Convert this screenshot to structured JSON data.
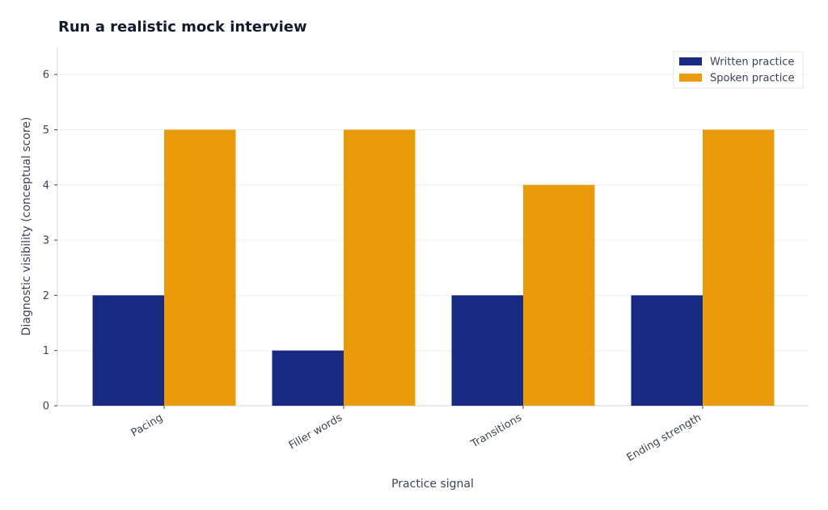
{
  "chart_data": {
    "type": "bar",
    "title": "Run a realistic mock interview",
    "xlabel": "Practice signal",
    "ylabel": "Diagnostic visibility (conceptual score)",
    "categories": [
      "Pacing",
      "Filler words",
      "Transitions",
      "Ending strength"
    ],
    "series": [
      {
        "name": "Written practice",
        "values": [
          2,
          1,
          2,
          2
        ],
        "color": "#182a82"
      },
      {
        "name": "Spoken practice",
        "values": [
          5,
          5,
          4,
          5
        ],
        "color": "#e99b0c"
      }
    ],
    "ylim": [
      0,
      6.5
    ],
    "yticks": [
      "0",
      "1",
      "2",
      "3",
      "4",
      "5",
      "6"
    ],
    "grid": true,
    "legend_position": "top-right"
  }
}
